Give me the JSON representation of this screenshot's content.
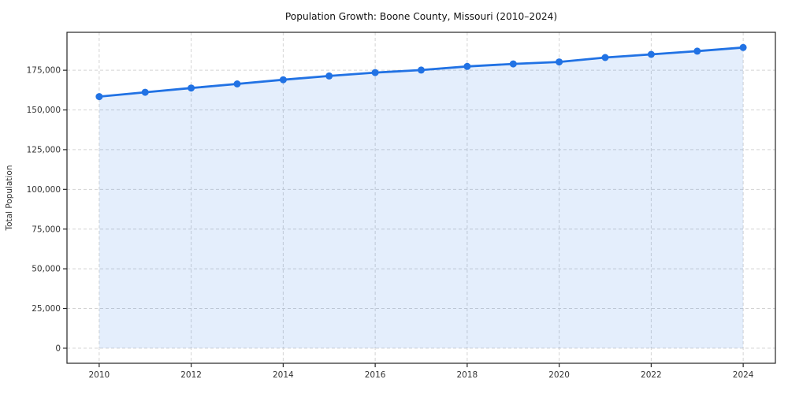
{
  "chart_data": {
    "type": "line",
    "title": "Population Growth: Boone County, Missouri (2010–2024)",
    "xlabel": "",
    "ylabel": "Total Population",
    "x": [
      2010,
      2011,
      2012,
      2013,
      2014,
      2015,
      2016,
      2017,
      2018,
      2019,
      2020,
      2021,
      2022,
      2023,
      2024
    ],
    "series": [
      {
        "name": "Total Population",
        "values": [
          158400,
          161100,
          163800,
          166400,
          169000,
          171400,
          173500,
          175100,
          177400,
          179000,
          180200,
          183000,
          185000,
          187000,
          189300
        ]
      }
    ],
    "x_ticks": [
      2010,
      2012,
      2014,
      2016,
      2018,
      2020,
      2022,
      2024
    ],
    "y_ticks": [
      0,
      25000,
      50000,
      75000,
      100000,
      125000,
      150000,
      175000
    ],
    "y_tick_labels": [
      "0",
      "25,000",
      "50,000",
      "75,000",
      "100,000",
      "125,000",
      "150,000",
      "175,000"
    ],
    "xlim": [
      2009.3,
      2024.7
    ],
    "ylim": [
      -9470,
      198870
    ],
    "grid": true,
    "grid_style": "dashed",
    "legend": "none",
    "marker": "circle",
    "area_fill_to": 0,
    "colors": {
      "line": "#2172e4",
      "marker": "#2172e4",
      "area_fill": "rgba(33,114,228,0.12)",
      "grid": "#cccccc",
      "axis_frame": "#262626",
      "tick_label": "#333333",
      "title": "#111111"
    }
  }
}
